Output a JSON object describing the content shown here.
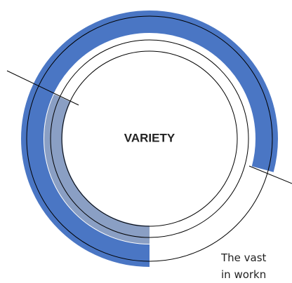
{
  "center_label": "VARIETY",
  "caption": [
    "The vast",
    "in workn"
  ]
}
